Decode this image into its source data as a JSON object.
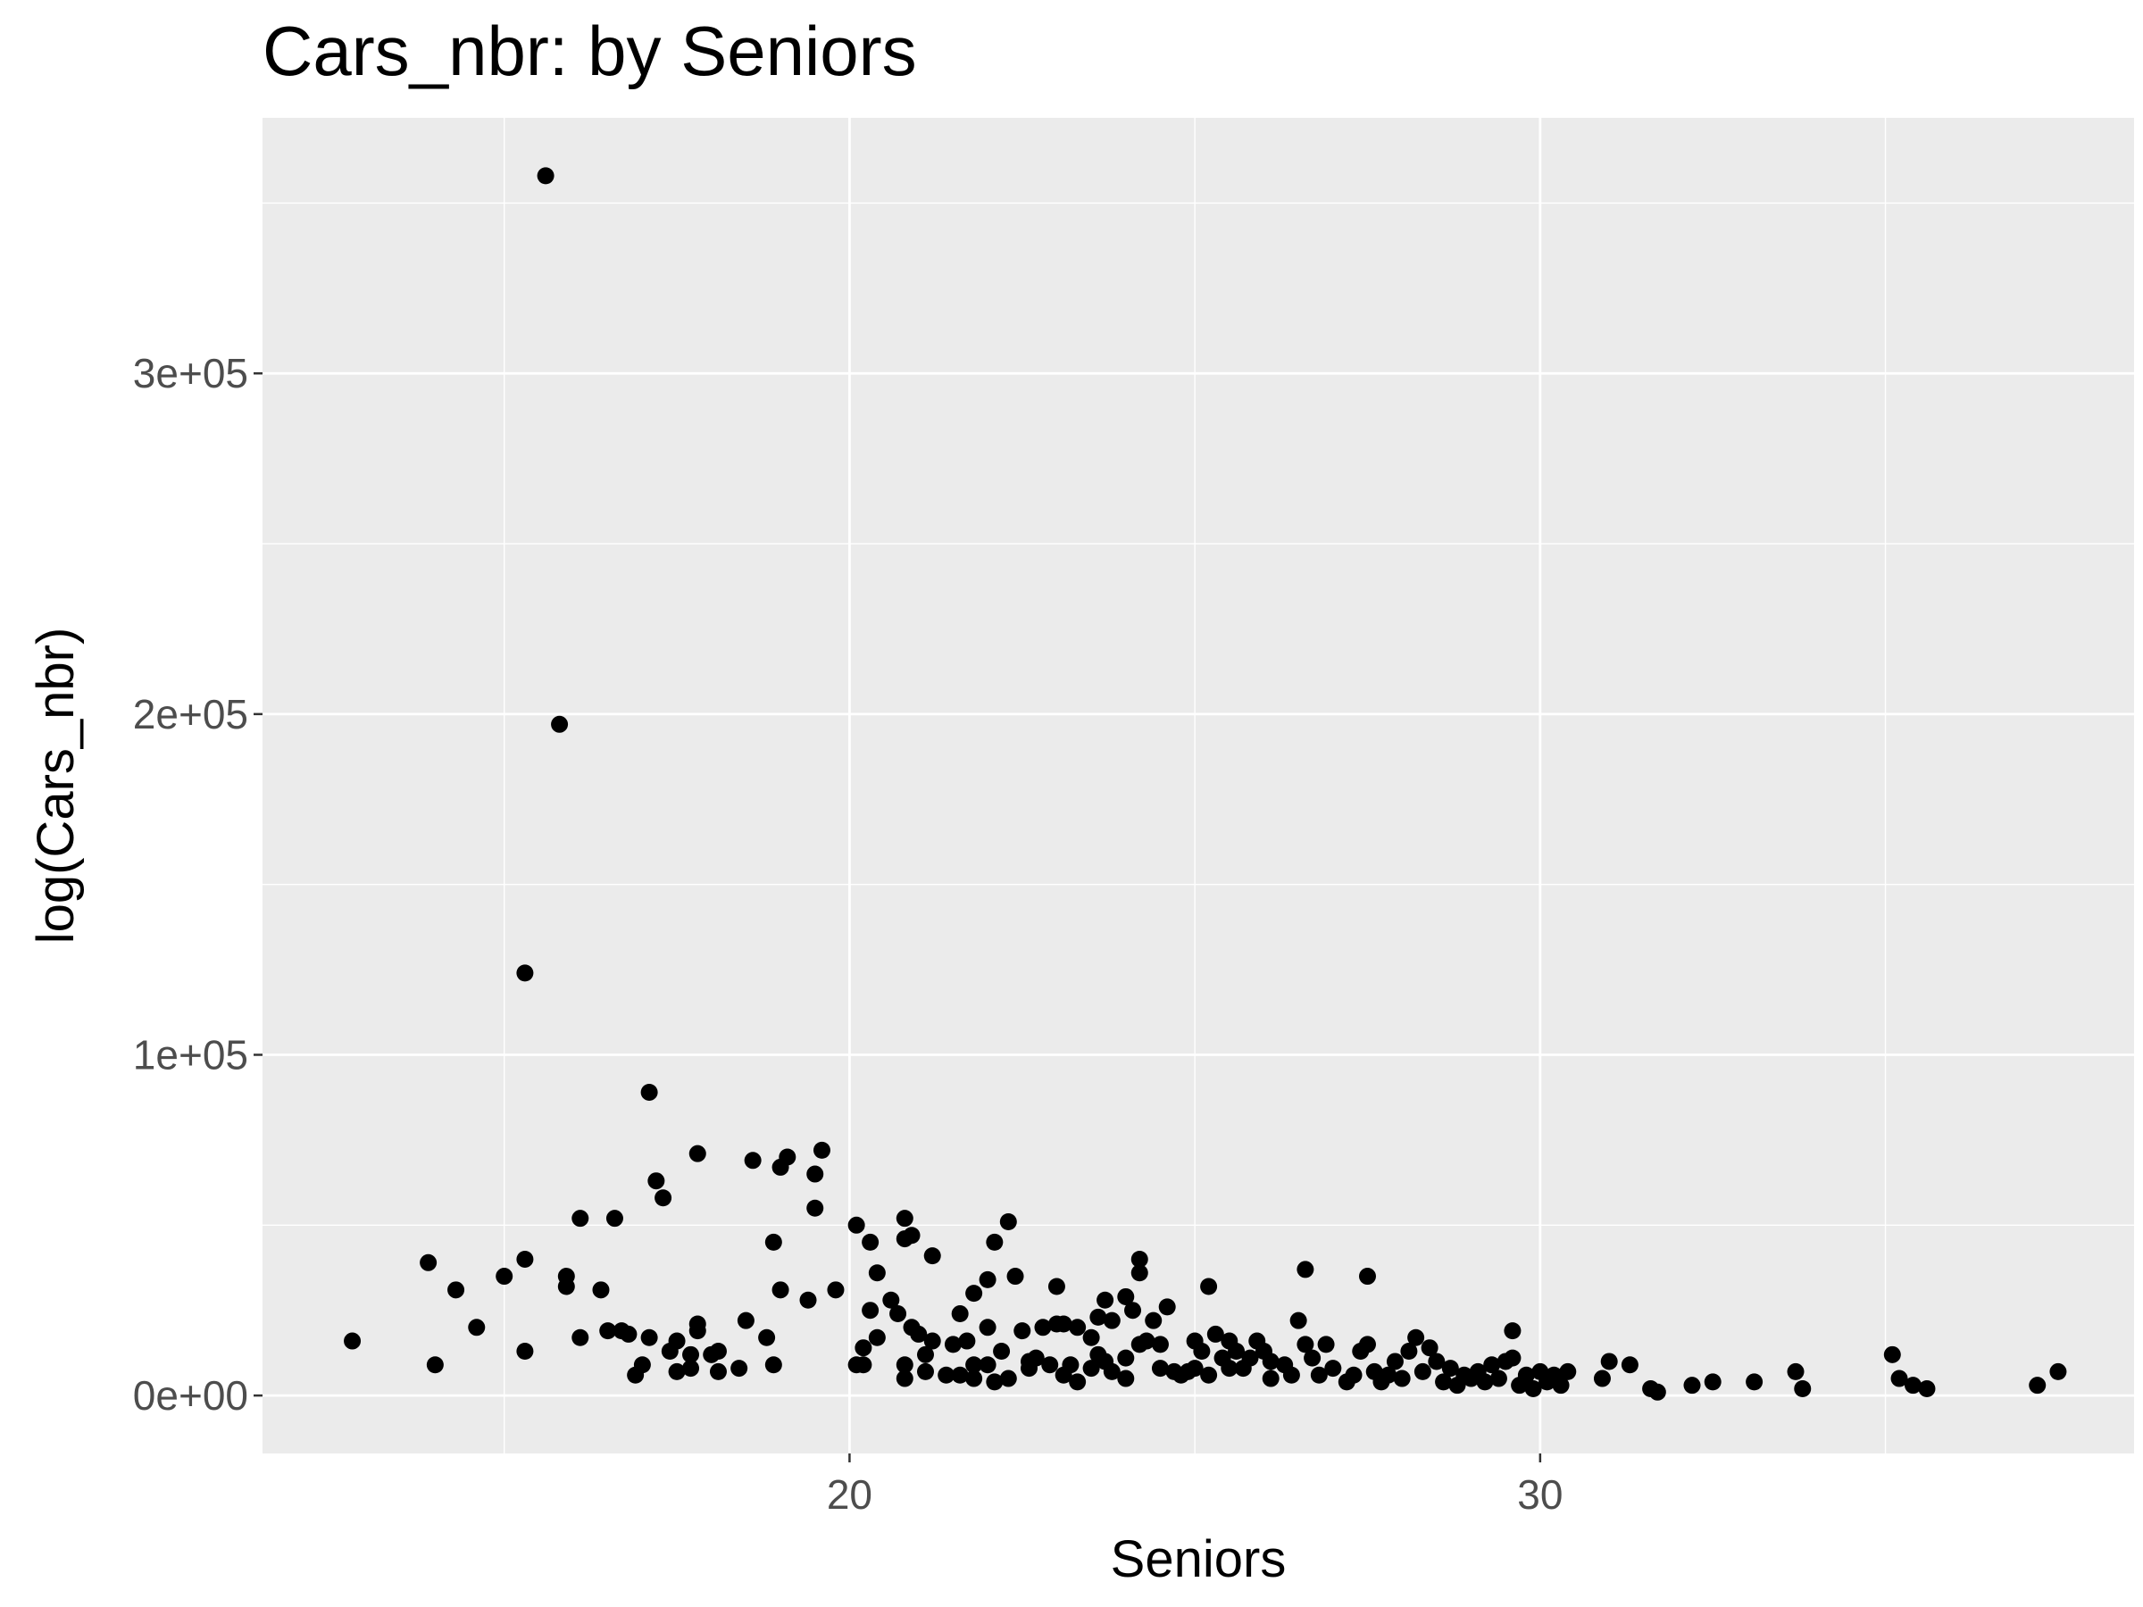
{
  "chart_data": {
    "type": "scatter",
    "title": "Cars_nbr: by Seniors",
    "xlabel": "Seniors",
    "ylabel": "log(Cars_nbr)",
    "xlim": [
      11.5,
      38.6
    ],
    "ylim": [
      -17000,
      375000
    ],
    "x_ticks": [
      20,
      30
    ],
    "x_tick_labels": [
      "20",
      "30"
    ],
    "x_minor_ticks": [
      15,
      25,
      35
    ],
    "y_ticks": [
      0,
      100000,
      200000,
      300000
    ],
    "y_tick_labels": [
      "0e+00",
      "1e+05",
      "2e+05",
      "3e+05"
    ],
    "y_minor_ticks": [
      50000,
      150000,
      250000,
      350000
    ],
    "grid": true,
    "colors": {
      "panel": "#ebebeb",
      "grid": "#ffffff",
      "point": "#000000"
    },
    "points": [
      [
        15.6,
        358000
      ],
      [
        15.8,
        197000
      ],
      [
        15.3,
        124000
      ],
      [
        12.8,
        16000
      ],
      [
        14.0,
        9000
      ],
      [
        13.9,
        39000
      ],
      [
        14.3,
        31000
      ],
      [
        14.6,
        20000
      ],
      [
        15.0,
        35000
      ],
      [
        15.3,
        40000
      ],
      [
        15.3,
        13000
      ],
      [
        15.9,
        35000
      ],
      [
        15.9,
        32000
      ],
      [
        16.1,
        52000
      ],
      [
        16.1,
        17000
      ],
      [
        16.4,
        31000
      ],
      [
        16.5,
        19000
      ],
      [
        16.6,
        52000
      ],
      [
        16.7,
        19000
      ],
      [
        16.8,
        18000
      ],
      [
        16.9,
        6000
      ],
      [
        17.0,
        9000
      ],
      [
        17.1,
        89000
      ],
      [
        17.1,
        17000
      ],
      [
        17.2,
        63000
      ],
      [
        17.3,
        58000
      ],
      [
        17.4,
        13000
      ],
      [
        17.5,
        16000
      ],
      [
        17.5,
        7000
      ],
      [
        17.7,
        12000
      ],
      [
        17.7,
        8000
      ],
      [
        17.8,
        71000
      ],
      [
        17.8,
        19000
      ],
      [
        17.8,
        21000
      ],
      [
        18.0,
        12000
      ],
      [
        18.1,
        13000
      ],
      [
        18.1,
        7000
      ],
      [
        18.4,
        8000
      ],
      [
        18.5,
        22000
      ],
      [
        18.6,
        69000
      ],
      [
        18.8,
        17000
      ],
      [
        18.9,
        45000
      ],
      [
        18.9,
        9000
      ],
      [
        19.0,
        67000
      ],
      [
        19.0,
        31000
      ],
      [
        19.1,
        70000
      ],
      [
        19.4,
        28000
      ],
      [
        19.5,
        55000
      ],
      [
        19.5,
        65000
      ],
      [
        19.6,
        72000
      ],
      [
        19.8,
        31000
      ],
      [
        20.1,
        50000
      ],
      [
        20.1,
        9000
      ],
      [
        20.2,
        14000
      ],
      [
        20.2,
        9000
      ],
      [
        20.3,
        45000
      ],
      [
        20.3,
        25000
      ],
      [
        20.4,
        36000
      ],
      [
        20.4,
        17000
      ],
      [
        20.6,
        28000
      ],
      [
        20.7,
        24000
      ],
      [
        20.8,
        52000
      ],
      [
        20.8,
        46000
      ],
      [
        20.8,
        9000
      ],
      [
        20.8,
        5000
      ],
      [
        20.9,
        47000
      ],
      [
        20.9,
        20000
      ],
      [
        21.0,
        18000
      ],
      [
        21.1,
        12000
      ],
      [
        21.1,
        7000
      ],
      [
        21.2,
        41000
      ],
      [
        21.2,
        16000
      ],
      [
        21.4,
        6000
      ],
      [
        21.5,
        15000
      ],
      [
        21.6,
        24000
      ],
      [
        21.6,
        6000
      ],
      [
        21.7,
        16000
      ],
      [
        21.8,
        30000
      ],
      [
        21.8,
        9000
      ],
      [
        21.8,
        5000
      ],
      [
        22.0,
        34000
      ],
      [
        22.0,
        20000
      ],
      [
        22.0,
        9000
      ],
      [
        22.1,
        45000
      ],
      [
        22.1,
        4000
      ],
      [
        22.2,
        13000
      ],
      [
        22.3,
        51000
      ],
      [
        22.3,
        5000
      ],
      [
        22.4,
        35000
      ],
      [
        22.5,
        19000
      ],
      [
        22.6,
        10000
      ],
      [
        22.6,
        8000
      ],
      [
        22.7,
        11000
      ],
      [
        22.8,
        20000
      ],
      [
        22.9,
        9000
      ],
      [
        23.0,
        21000
      ],
      [
        23.0,
        32000
      ],
      [
        23.1,
        6000
      ],
      [
        23.1,
        21000
      ],
      [
        23.2,
        9000
      ],
      [
        23.3,
        20000
      ],
      [
        23.3,
        4000
      ],
      [
        23.5,
        17000
      ],
      [
        23.5,
        8000
      ],
      [
        23.6,
        23000
      ],
      [
        23.6,
        12000
      ],
      [
        23.7,
        28000
      ],
      [
        23.7,
        10000
      ],
      [
        23.8,
        22000
      ],
      [
        23.8,
        7000
      ],
      [
        24.0,
        29000
      ],
      [
        24.0,
        11000
      ],
      [
        24.0,
        5000
      ],
      [
        24.1,
        25000
      ],
      [
        24.2,
        40000
      ],
      [
        24.2,
        36000
      ],
      [
        24.2,
        15000
      ],
      [
        24.3,
        16000
      ],
      [
        24.4,
        22000
      ],
      [
        24.5,
        15000
      ],
      [
        24.5,
        8000
      ],
      [
        24.6,
        26000
      ],
      [
        24.7,
        7000
      ],
      [
        24.8,
        6000
      ],
      [
        24.9,
        7000
      ],
      [
        25.0,
        8000
      ],
      [
        25.0,
        16000
      ],
      [
        25.1,
        13000
      ],
      [
        25.2,
        32000
      ],
      [
        25.2,
        6000
      ],
      [
        25.3,
        18000
      ],
      [
        25.4,
        11000
      ],
      [
        25.5,
        16000
      ],
      [
        25.5,
        8000
      ],
      [
        25.6,
        13000
      ],
      [
        25.7,
        8000
      ],
      [
        25.8,
        11000
      ],
      [
        25.9,
        16000
      ],
      [
        26.0,
        13000
      ],
      [
        26.1,
        10000
      ],
      [
        26.1,
        5000
      ],
      [
        26.3,
        9000
      ],
      [
        26.4,
        6000
      ],
      [
        26.5,
        22000
      ],
      [
        26.6,
        37000
      ],
      [
        26.6,
        15000
      ],
      [
        26.7,
        11000
      ],
      [
        26.8,
        6000
      ],
      [
        26.9,
        15000
      ],
      [
        27.0,
        8000
      ],
      [
        27.2,
        4000
      ],
      [
        27.3,
        6000
      ],
      [
        27.4,
        13000
      ],
      [
        27.5,
        35000
      ],
      [
        27.5,
        15000
      ],
      [
        27.6,
        7000
      ],
      [
        27.7,
        4000
      ],
      [
        27.8,
        6000
      ],
      [
        27.9,
        10000
      ],
      [
        28.0,
        5000
      ],
      [
        28.1,
        13000
      ],
      [
        28.2,
        17000
      ],
      [
        28.3,
        7000
      ],
      [
        28.4,
        14000
      ],
      [
        28.5,
        10000
      ],
      [
        28.6,
        4000
      ],
      [
        28.7,
        8000
      ],
      [
        28.8,
        3000
      ],
      [
        28.9,
        6000
      ],
      [
        29.0,
        5000
      ],
      [
        29.1,
        7000
      ],
      [
        29.2,
        4000
      ],
      [
        29.3,
        9000
      ],
      [
        29.4,
        5000
      ],
      [
        29.5,
        10000
      ],
      [
        29.6,
        19000
      ],
      [
        29.6,
        11000
      ],
      [
        29.7,
        3000
      ],
      [
        29.8,
        6000
      ],
      [
        29.9,
        2000
      ],
      [
        30.0,
        7000
      ],
      [
        30.1,
        4000
      ],
      [
        30.2,
        6000
      ],
      [
        30.3,
        3000
      ],
      [
        30.4,
        7000
      ],
      [
        30.9,
        5000
      ],
      [
        31.0,
        10000
      ],
      [
        31.3,
        9000
      ],
      [
        31.6,
        2000
      ],
      [
        31.7,
        1000
      ],
      [
        32.2,
        3000
      ],
      [
        32.5,
        4000
      ],
      [
        33.1,
        4000
      ],
      [
        33.7,
        7000
      ],
      [
        33.8,
        2000
      ],
      [
        35.1,
        12000
      ],
      [
        35.2,
        5000
      ],
      [
        35.4,
        3000
      ],
      [
        35.6,
        2000
      ],
      [
        37.2,
        3000
      ],
      [
        37.5,
        7000
      ]
    ]
  }
}
